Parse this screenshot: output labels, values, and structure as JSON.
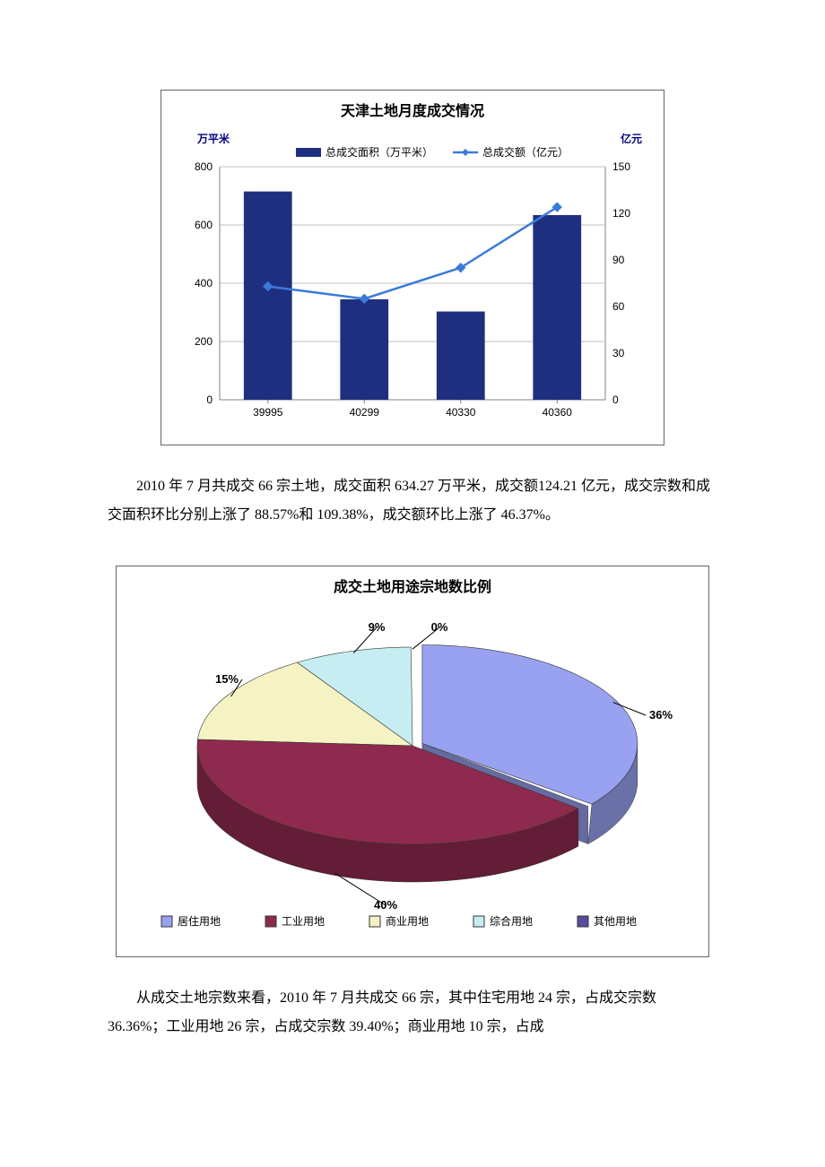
{
  "bar_line_chart": {
    "type": "bar+line",
    "title": "天津土地月度成交情况",
    "title_fontsize": 16,
    "left_axis_label": "万平米",
    "right_axis_label": "亿元",
    "categories": [
      "39995",
      "40299",
      "40330",
      "40360"
    ],
    "bar_series_label": "总成交面积（万平米）",
    "line_series_label": "总成交额（亿元）",
    "bar_values": [
      715,
      345,
      303,
      634
    ],
    "line_values": [
      73,
      65,
      85,
      124
    ],
    "left_ylim": [
      0,
      800
    ],
    "left_ytick_step": 200,
    "right_ylim": [
      0,
      150
    ],
    "right_ytick_step": 30,
    "bar_color": "#1f2f7f",
    "line_color": "#3a7ad9",
    "marker_color": "#3a7ad9",
    "grid_color": "#c0c0c0",
    "background_color": "#ffffff",
    "border_color": "#666666",
    "bar_width": 0.5
  },
  "paragraph1": "2010 年 7 月共成交 66 宗土地，成交面积 634.27 万平米，成交额124.21 亿元，成交宗数和成交面积环比分别上涨了 88.57%和 109.38%，成交额环比上涨了 46.37%。",
  "pie_chart": {
    "type": "pie-3d",
    "title": "成交土地用途宗地数比例",
    "title_fontsize": 16,
    "slices": [
      {
        "label": "居住用地",
        "pct": 36,
        "pct_text": "36%",
        "color": "#98a2f0"
      },
      {
        "label": "工业用地",
        "pct": 40,
        "pct_text": "40%",
        "color": "#8e2a4e"
      },
      {
        "label": "商业用地",
        "pct": 15,
        "pct_text": "15%",
        "color": "#f5f3c3"
      },
      {
        "label": "综合用地",
        "pct": 9,
        "pct_text": "9%",
        "color": "#c6eef2"
      },
      {
        "label": "其他用地",
        "pct": 0,
        "pct_text": "0%",
        "color": "#5a4aa0"
      }
    ],
    "background_color": "#ffffff",
    "border_color": "#666666",
    "side_darken": 0.7,
    "legend_marker_border": "#333333"
  },
  "paragraph2": "从成交土地宗数来看，2010 年 7 月共成交 66 宗，其中住宅用地 24 宗，占成交宗数 36.36%；工业用地 26 宗，占成交宗数 39.40%；商业用地 10 宗，占成"
}
